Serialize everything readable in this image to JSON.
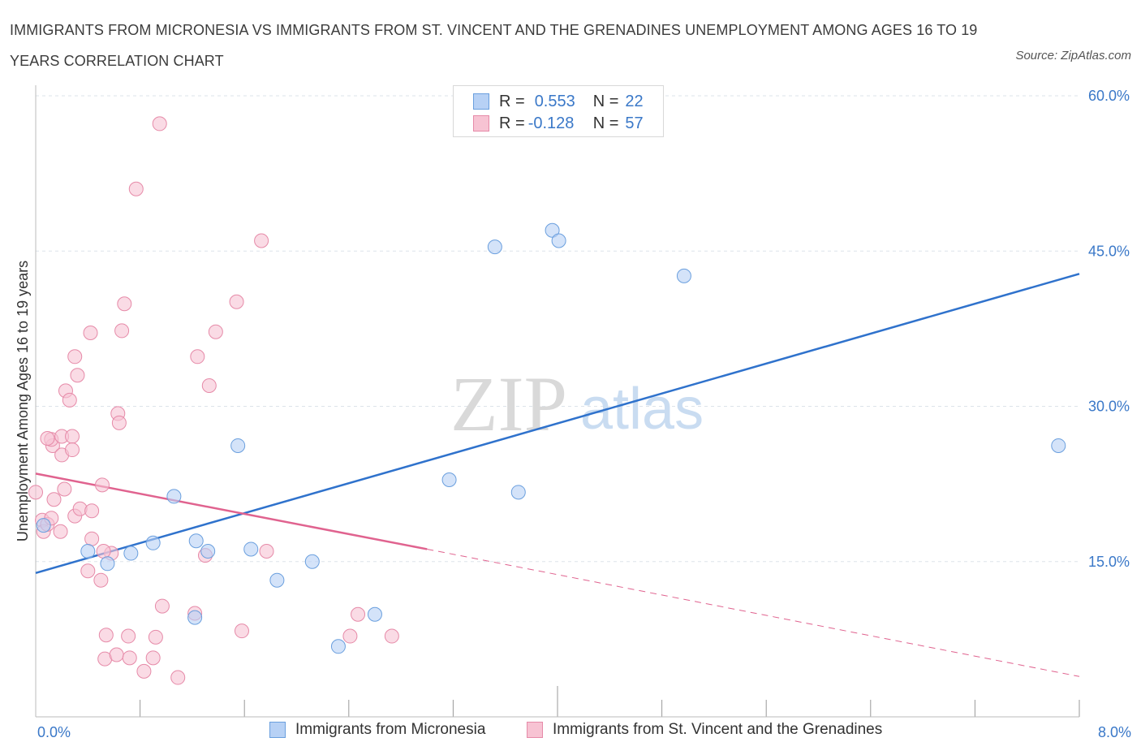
{
  "title": "IMMIGRANTS FROM MICRONESIA VS IMMIGRANTS FROM ST. VINCENT AND THE GRENADINES UNEMPLOYMENT AMONG AGES 16 TO 19 YEARS CORRELATION CHART",
  "source": "Source: ZipAtlas.com",
  "watermark": {
    "zip": "ZIP",
    "atlas": "atlas"
  },
  "legend_top": {
    "rows": [
      {
        "r_label": "R =",
        "r_value": "0.553",
        "n_label": "N =",
        "n_value": "22"
      },
      {
        "r_label": "R =",
        "r_value": "-0.128",
        "n_label": "N =",
        "n_value": "57"
      }
    ]
  },
  "colors": {
    "blue_fill": "#b7d1f5",
    "blue_stroke": "#6a9fde",
    "blue_line": "#2f72cc",
    "pink_fill": "#f7c3d3",
    "pink_stroke": "#e68aa8",
    "pink_line": "#e0638f",
    "axis_label": "#3a78c8",
    "grid": "#dde3ea"
  },
  "chart_data": {
    "type": "scatter",
    "title": "IMMIGRANTS FROM MICRONESIA VS IMMIGRANTS FROM ST. VINCENT AND THE GRENADINES UNEMPLOYMENT AMONG AGES 16 TO 19 YEARS CORRELATION CHART",
    "xlabel": "",
    "ylabel": "Unemployment Among Ages 16 to 19 years",
    "xlim": [
      0,
      8
    ],
    "ylim": [
      0,
      60
    ],
    "x_tick_labels": [
      "0.0%",
      "8.0%"
    ],
    "y_tick_labels": [
      "15.0%",
      "30.0%",
      "45.0%",
      "60.0%"
    ],
    "y_ticks": [
      15,
      30,
      45,
      60
    ],
    "grid": true,
    "legend_position": "bottom",
    "series": [
      {
        "name": "Immigrants from Micronesia",
        "color": "blue",
        "points": [
          [
            0.06,
            18.5
          ],
          [
            0.4,
            16.0
          ],
          [
            0.55,
            14.8
          ],
          [
            0.73,
            15.8
          ],
          [
            0.9,
            16.8
          ],
          [
            1.06,
            21.3
          ],
          [
            1.23,
            17.0
          ],
          [
            1.32,
            16.0
          ],
          [
            1.55,
            26.2
          ],
          [
            1.65,
            16.2
          ],
          [
            1.85,
            13.2
          ],
          [
            2.12,
            15.0
          ],
          [
            2.32,
            6.8
          ],
          [
            2.6,
            9.9
          ],
          [
            3.17,
            22.9
          ],
          [
            3.52,
            45.4
          ],
          [
            3.7,
            21.7
          ],
          [
            3.96,
            47.0
          ],
          [
            4.01,
            46.0
          ],
          [
            4.97,
            42.6
          ],
          [
            7.84,
            26.2
          ],
          [
            1.22,
            9.6
          ]
        ],
        "trend": {
          "x": [
            0.0,
            8.0
          ],
          "y": [
            13.9,
            42.8
          ]
        }
      },
      {
        "name": "Immigrants from St. Vincent and the Grenadines",
        "color": "pink",
        "points": [
          [
            0.0,
            21.7
          ],
          [
            0.05,
            19.0
          ],
          [
            0.06,
            17.9
          ],
          [
            0.09,
            18.6
          ],
          [
            0.12,
            19.2
          ],
          [
            0.13,
            26.2
          ],
          [
            0.12,
            26.8
          ],
          [
            0.14,
            21.0
          ],
          [
            0.19,
            17.9
          ],
          [
            0.2,
            25.3
          ],
          [
            0.22,
            22.0
          ],
          [
            0.2,
            27.1
          ],
          [
            0.23,
            31.5
          ],
          [
            0.26,
            30.6
          ],
          [
            0.28,
            27.1
          ],
          [
            0.3,
            19.4
          ],
          [
            0.34,
            20.1
          ],
          [
            0.3,
            34.8
          ],
          [
            0.32,
            33.0
          ],
          [
            0.4,
            14.1
          ],
          [
            0.43,
            17.2
          ],
          [
            0.42,
            37.1
          ],
          [
            0.5,
            13.2
          ],
          [
            0.51,
            22.4
          ],
          [
            0.53,
            5.6
          ],
          [
            0.54,
            7.9
          ],
          [
            0.58,
            15.8
          ],
          [
            0.62,
            6.0
          ],
          [
            0.63,
            29.3
          ],
          [
            0.64,
            28.4
          ],
          [
            0.66,
            37.3
          ],
          [
            0.68,
            39.9
          ],
          [
            0.71,
            7.8
          ],
          [
            0.72,
            5.7
          ],
          [
            0.77,
            51.0
          ],
          [
            0.83,
            4.4
          ],
          [
            0.9,
            5.7
          ],
          [
            0.92,
            7.7
          ],
          [
            0.95,
            57.3
          ],
          [
            0.97,
            10.7
          ],
          [
            1.09,
            3.8
          ],
          [
            1.22,
            10.0
          ],
          [
            1.24,
            34.8
          ],
          [
            1.3,
            15.6
          ],
          [
            1.33,
            32.0
          ],
          [
            1.38,
            37.2
          ],
          [
            1.54,
            40.1
          ],
          [
            1.58,
            8.3
          ],
          [
            1.73,
            46.0
          ],
          [
            1.77,
            16.0
          ],
          [
            2.47,
            9.9
          ],
          [
            2.41,
            7.8
          ],
          [
            2.73,
            7.8
          ],
          [
            0.28,
            25.8
          ],
          [
            0.09,
            26.9
          ],
          [
            0.52,
            16.0
          ],
          [
            0.43,
            19.9
          ]
        ],
        "trend": {
          "x": [
            0.0,
            3.0
          ],
          "y": [
            23.5,
            16.2
          ]
        },
        "trend_extension": {
          "x": [
            3.0,
            8.0
          ],
          "y": [
            16.2,
            3.9
          ]
        }
      }
    ]
  },
  "bottom_legend": {
    "items": [
      {
        "label": "Immigrants from Micronesia"
      },
      {
        "label": "Immigrants from St. Vincent and the Grenadines"
      }
    ]
  }
}
